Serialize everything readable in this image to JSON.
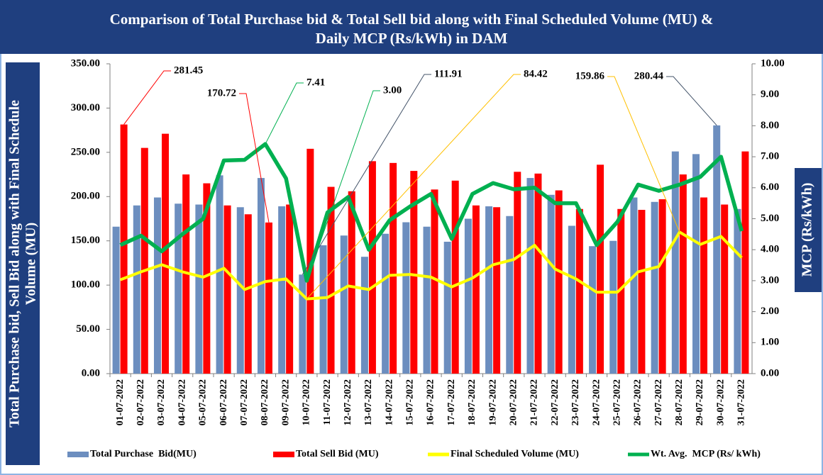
{
  "chart_data": {
    "type": "bar",
    "title": [
      "Comparison of Total Purchase bid & Total Sell bid along with Final Scheduled Volume (MU) &",
      "Daily MCP (Rs/kWh) in DAM"
    ],
    "ylabel": [
      "Total Purchase bid, Sell Bid along with Final Schedule",
      "Volume (MU)"
    ],
    "y2label": "MCP (Rs/kWh)",
    "categories": [
      "01-07-2022",
      "02-07-2022",
      "03-07-2022",
      "04-07-2022",
      "05-07-2022",
      "06-07-2022",
      "07-07-2022",
      "08-07-2022",
      "09-07-2022",
      "10-07-2022",
      "11-07-2022",
      "12-07-2022",
      "13-07-2022",
      "14-07-2022",
      "15-07-2022",
      "16-07-2022",
      "17-07-2022",
      "18-07-2022",
      "19-07-2022",
      "20-07-2022",
      "21-07-2022",
      "22-07-2022",
      "23-07-2022",
      "24-07-2022",
      "25-07-2022",
      "26-07-2022",
      "27-07-2022",
      "28-07-2022",
      "29-07-2022",
      "30-07-2022",
      "31-07-2022"
    ],
    "series": [
      {
        "name": "Total Purchase  Bid(MU)",
        "type": "bar",
        "color": "#6c8ebf",
        "values": [
          166,
          190,
          199,
          192,
          191,
          224,
          188,
          221,
          189,
          111.91,
          145,
          156,
          132,
          158,
          171,
          166,
          149,
          175,
          189,
          178,
          221,
          202,
          167,
          144,
          150,
          199,
          194,
          251,
          248,
          280.44,
          186
        ],
        "value_labels": [
          null,
          null,
          null,
          null,
          null,
          null,
          null,
          null,
          null,
          "111.91",
          null,
          null,
          null,
          null,
          null,
          null,
          null,
          null,
          null,
          null,
          null,
          null,
          null,
          null,
          null,
          null,
          null,
          null,
          null,
          "280.44",
          null
        ]
      },
      {
        "name": "Total Sell Bid (MU)",
        "type": "bar",
        "color": "#ff0000",
        "values": [
          281.45,
          255,
          271,
          225,
          215,
          190,
          180,
          170.72,
          191,
          254,
          211,
          206,
          240,
          238,
          229,
          208,
          218,
          190,
          188,
          228,
          226,
          207,
          186,
          236,
          186,
          185,
          197,
          225,
          199,
          191,
          251
        ],
        "value_labels": [
          "281.45",
          null,
          null,
          null,
          null,
          null,
          null,
          "170.72",
          null,
          null,
          null,
          null,
          null,
          null,
          null,
          null,
          null,
          null,
          null,
          null,
          null,
          null,
          null,
          null,
          null,
          null,
          null,
          null,
          null,
          null,
          null
        ]
      },
      {
        "name": "Final Scheduled Volume (MU)",
        "type": "line",
        "color": "#ffff00",
        "values": [
          106,
          115,
          123,
          115,
          109,
          119,
          95,
          104,
          107,
          84.42,
          86,
          99,
          95,
          111,
          112,
          109,
          98,
          108,
          123,
          129,
          145,
          118,
          107,
          92,
          92,
          115,
          121,
          159.86,
          146,
          155,
          131
        ],
        "value_labels": [
          null,
          null,
          null,
          null,
          null,
          null,
          null,
          null,
          null,
          "84.42",
          null,
          null,
          null,
          null,
          null,
          null,
          null,
          null,
          null,
          null,
          null,
          null,
          null,
          null,
          null,
          null,
          null,
          "159.86",
          null,
          null,
          null
        ]
      },
      {
        "name": "Wt. Avg.  MCP (Rs/ kWh)",
        "type": "line",
        "axis": "y2",
        "color": "#00b050",
        "values": [
          4.15,
          4.45,
          3.95,
          4.5,
          5.0,
          6.88,
          6.9,
          7.41,
          6.3,
          3.0,
          5.2,
          5.7,
          4.0,
          4.95,
          5.4,
          5.8,
          4.35,
          5.8,
          6.15,
          5.95,
          6.0,
          5.5,
          5.5,
          4.15,
          4.9,
          6.1,
          5.9,
          6.1,
          6.35,
          7.0,
          4.6
        ],
        "value_labels": [
          null,
          null,
          null,
          null,
          null,
          null,
          null,
          "7.41",
          null,
          "3.00",
          null,
          null,
          null,
          null,
          null,
          null,
          null,
          null,
          null,
          null,
          null,
          null,
          null,
          null,
          null,
          null,
          null,
          null,
          null,
          null,
          null
        ]
      }
    ],
    "ylim": [
      0,
      350
    ],
    "yticks": [
      {
        "value": 0,
        "label": "0.00"
      },
      {
        "value": 50,
        "label": "50.00"
      },
      {
        "value": 100,
        "label": "100.00"
      },
      {
        "value": 150,
        "label": "150.00"
      },
      {
        "value": 200,
        "label": "200.00"
      },
      {
        "value": 250,
        "label": "250.00"
      },
      {
        "value": 300,
        "label": "300.00"
      },
      {
        "value": 350,
        "label": "350.00"
      }
    ],
    "y2lim": [
      0,
      10
    ],
    "y2ticks": [
      {
        "value": 0,
        "label": "0.00"
      },
      {
        "value": 1,
        "label": "1.00"
      },
      {
        "value": 2,
        "label": "2.00"
      },
      {
        "value": 3,
        "label": "3.00"
      },
      {
        "value": 4,
        "label": "4.00"
      },
      {
        "value": 5,
        "label": "5.00"
      },
      {
        "value": 6,
        "label": "6.00"
      },
      {
        "value": 7,
        "label": "7.00"
      },
      {
        "value": 8,
        "label": "8.00"
      },
      {
        "value": 9,
        "label": "9.00"
      },
      {
        "value": 10,
        "label": "10.00"
      }
    ],
    "grid": false,
    "legend": "bottom"
  }
}
